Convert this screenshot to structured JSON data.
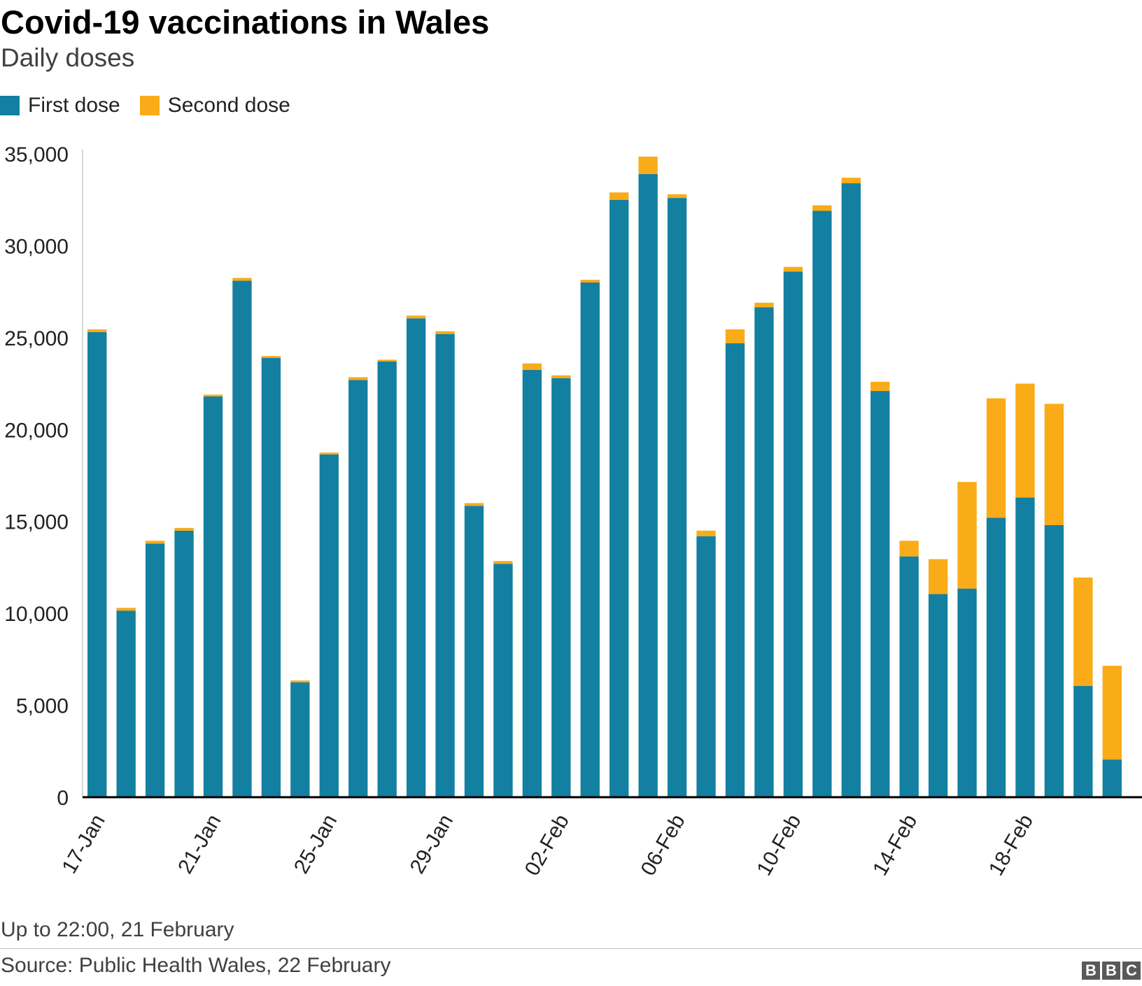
{
  "header": {
    "title": "Covid-19 vaccinations in Wales",
    "subtitle": "Daily doses"
  },
  "colors": {
    "first_dose": "#1380A1",
    "second_dose": "#FAAB18",
    "axis_line": "#000000",
    "grid_line": "#cbcbcb",
    "tick_text": "#222222"
  },
  "chart_data": {
    "type": "bar",
    "stacked": true,
    "categories": [
      "17-Jan",
      "18-Jan",
      "19-Jan",
      "20-Jan",
      "21-Jan",
      "22-Jan",
      "23-Jan",
      "24-Jan",
      "25-Jan",
      "26-Jan",
      "27-Jan",
      "28-Jan",
      "29-Jan",
      "30-Jan",
      "31-Jan",
      "01-Feb",
      "02-Feb",
      "03-Feb",
      "04-Feb",
      "05-Feb",
      "06-Feb",
      "07-Feb",
      "08-Feb",
      "09-Feb",
      "10-Feb",
      "11-Feb",
      "12-Feb",
      "13-Feb",
      "14-Feb",
      "15-Feb",
      "16-Feb",
      "17-Feb",
      "18-Feb",
      "19-Feb",
      "20-Feb",
      "21-Feb"
    ],
    "x_tick_labels": [
      "17-Jan",
      "21-Jan",
      "25-Jan",
      "29-Jan",
      "02-Feb",
      "06-Feb",
      "10-Feb",
      "14-Feb",
      "18-Feb"
    ],
    "x_tick_categories": [
      "17-Jan",
      "21-Jan",
      "25-Jan",
      "29-Jan",
      "02-Feb",
      "06-Feb",
      "10-Feb",
      "14-Feb",
      "18-Feb"
    ],
    "series": [
      {
        "name": "First dose",
        "values": [
          25300,
          10150,
          13800,
          14500,
          21800,
          28100,
          23900,
          6250,
          18650,
          22700,
          23700,
          26050,
          25200,
          15850,
          12700,
          23250,
          22800,
          28000,
          32500,
          33900,
          32600,
          14200,
          24700,
          26650,
          28600,
          31900,
          33400,
          22100,
          13100,
          11050,
          11350,
          15200,
          16300,
          14800,
          6050,
          2050
        ]
      },
      {
        "name": "Second dose",
        "values": [
          150,
          150,
          150,
          150,
          100,
          150,
          100,
          100,
          100,
          150,
          100,
          150,
          150,
          150,
          150,
          350,
          150,
          150,
          400,
          950,
          200,
          300,
          750,
          250,
          250,
          300,
          300,
          500,
          850,
          1900,
          5800,
          6500,
          6200,
          6600,
          5900,
          5100
        ]
      }
    ],
    "ylim": [
      0,
      35000
    ],
    "y_ticks": [
      0,
      5000,
      10000,
      15000,
      20000,
      25000,
      30000,
      35000
    ],
    "y_tick_labels": [
      "0",
      "5,000",
      "10,000",
      "15,000",
      "20,000",
      "25,000",
      "30,000",
      "35,000"
    ],
    "grid": false,
    "legend_position": "top-left"
  },
  "footer": {
    "note": "Up to 22:00, 21 February",
    "source": "Source: Public Health Wales, 22 February",
    "logo_letters": [
      "B",
      "B",
      "C"
    ]
  }
}
